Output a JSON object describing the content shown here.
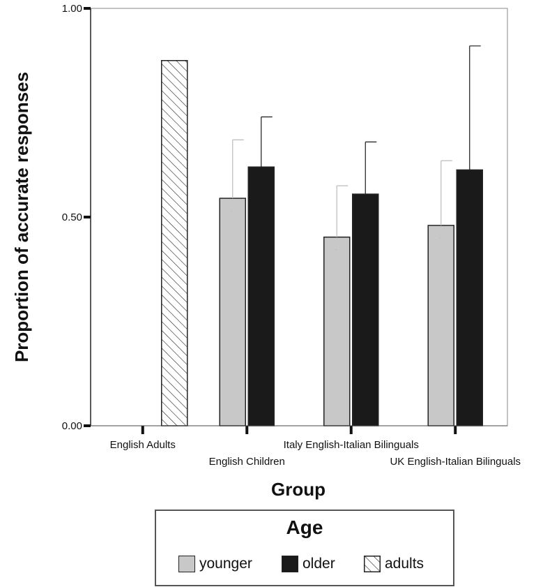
{
  "chart_data": {
    "type": "bar",
    "ylabel": "Proportion of accurate responses",
    "xlabel": "Group",
    "ylim": [
      0,
      1.0
    ],
    "yticks": [
      "0.00",
      "0.50",
      "1.00"
    ],
    "categories": [
      "English Adults",
      "English Children",
      "Italy English-Italian Bilinguals",
      "UK English-Italian Bilinguals"
    ],
    "series": [
      {
        "name": "younger",
        "values": [
          null,
          0.545,
          0.452,
          0.48
        ],
        "error_upper": [
          null,
          0.685,
          0.575,
          0.635
        ],
        "color": "#c8c8c8",
        "error_color": "#bbbbbb"
      },
      {
        "name": "older",
        "values": [
          null,
          0.62,
          0.555,
          0.613
        ],
        "error_upper": [
          null,
          0.74,
          0.68,
          0.91
        ],
        "color": "#1a1a1a",
        "error_color": "#1a1a1a"
      },
      {
        "name": "adults",
        "values": [
          0.875,
          null,
          null,
          null
        ],
        "error_upper": [
          null,
          null,
          null,
          null
        ],
        "color": "hatched",
        "error_color": "#1a1a1a"
      }
    ],
    "grid": false,
    "legend": {
      "title": "Age",
      "placement": "bottom"
    }
  }
}
